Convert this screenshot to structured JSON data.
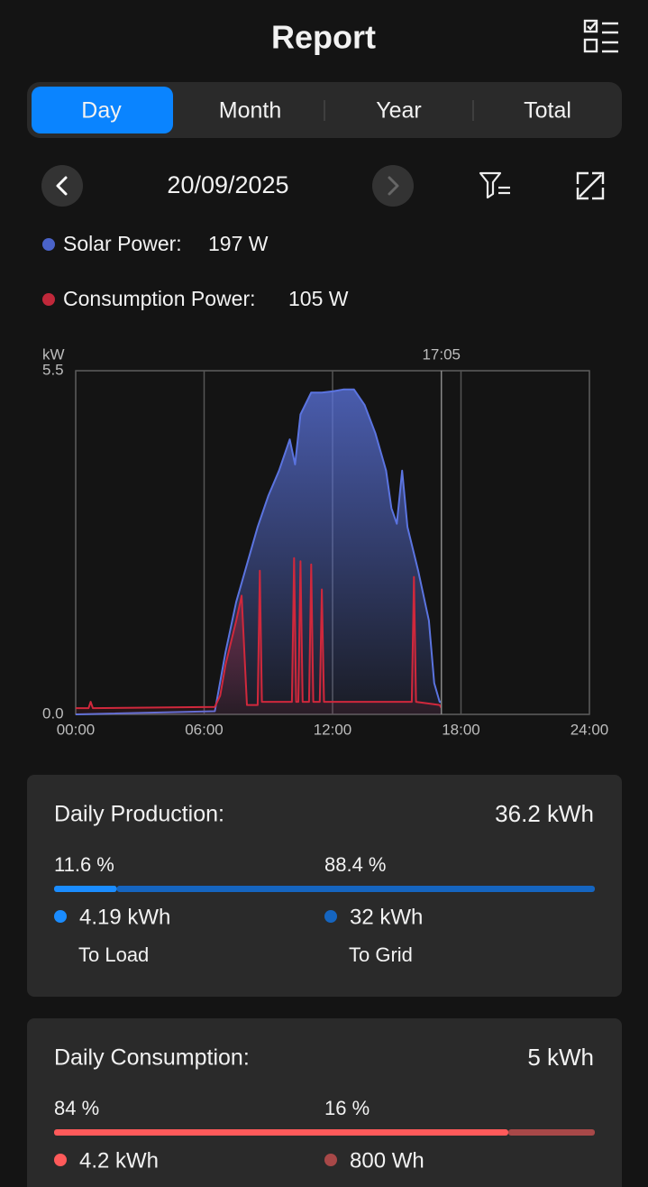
{
  "header": {
    "title": "Report"
  },
  "tabs": {
    "items": [
      "Day",
      "Month",
      "Year",
      "Total"
    ],
    "active": 0
  },
  "date": "20/09/2025",
  "readouts": [
    {
      "label": "Solar Power:",
      "value": "197 W",
      "color": "#4a63c9"
    },
    {
      "label": "Consumption Power:",
      "value": "105 W",
      "color": "#c0283a"
    }
  ],
  "chart_data": {
    "type": "area",
    "y_unit": "kW",
    "cursor": {
      "value": 17.083,
      "label": "17:05"
    },
    "xlim": [
      0,
      24
    ],
    "xticks": [
      {
        "value": 0,
        "label": "00:00"
      },
      {
        "value": 6,
        "label": "06:00"
      },
      {
        "value": 12,
        "label": "12:00"
      },
      {
        "value": 18,
        "label": "18:00"
      },
      {
        "value": 24,
        "label": "24:00"
      }
    ],
    "ylim": [
      0,
      5.5
    ],
    "yticks": [
      {
        "value": 0,
        "label": "0.0"
      },
      5.5
    ],
    "grid": true,
    "series": [
      {
        "name": "Solar Power",
        "color": "#5b74e0",
        "x": [
          0,
          6.5,
          7,
          7.5,
          8,
          8.5,
          9,
          9.5,
          10,
          10.25,
          10.5,
          11,
          11.5,
          12,
          12.5,
          13,
          13.5,
          14,
          14.5,
          14.75,
          15,
          15.25,
          15.5,
          16,
          16.5,
          16.75,
          17,
          17.083
        ],
        "values": [
          0,
          0.05,
          1.0,
          1.8,
          2.4,
          3.0,
          3.5,
          3.9,
          4.4,
          4.0,
          4.8,
          5.15,
          5.15,
          5.17,
          5.2,
          5.2,
          4.95,
          4.5,
          3.9,
          3.3,
          3.05,
          3.9,
          3.0,
          2.3,
          1.5,
          0.5,
          0.2,
          0.197
        ]
      },
      {
        "name": "Consumption Power",
        "color": "#d0283c",
        "x": [
          0,
          0.6,
          0.7,
          0.8,
          6.5,
          6.75,
          7,
          7.5,
          7.75,
          8,
          8.5,
          8.6,
          8.7,
          10.1,
          10.2,
          10.3,
          10.4,
          10.5,
          10.6,
          10.9,
          11,
          11.1,
          11.4,
          11.5,
          11.6,
          15.7,
          15.8,
          15.9,
          17,
          17.083
        ],
        "values": [
          0.1,
          0.1,
          0.2,
          0.1,
          0.12,
          0.3,
          0.8,
          1.5,
          1.9,
          0.15,
          0.15,
          2.3,
          0.2,
          0.2,
          2.5,
          0.2,
          0.2,
          2.45,
          0.2,
          0.2,
          2.4,
          0.2,
          0.2,
          2.0,
          0.2,
          0.2,
          2.2,
          0.2,
          0.15,
          0.105
        ]
      }
    ]
  },
  "cards": [
    {
      "title": "Daily Production:",
      "total": "36.2 kWh",
      "parts": [
        {
          "share": 11.6,
          "share_label": "11.6 %",
          "value": "4.19 kWh",
          "label": "To Load",
          "color": "#1a8cff"
        },
        {
          "share": 88.4,
          "share_label": "88.4 %",
          "value": "32 kWh",
          "label": "To Grid",
          "color": "#1565c0"
        }
      ]
    },
    {
      "title": "Daily Consumption:",
      "total": "5 kWh",
      "parts": [
        {
          "share": 84,
          "share_label": "84 %",
          "value": "4.2 kWh",
          "color": "#ff5a5a"
        },
        {
          "share": 16,
          "share_label": "16 %",
          "value": "800 Wh",
          "color": "#a84848"
        }
      ]
    }
  ]
}
